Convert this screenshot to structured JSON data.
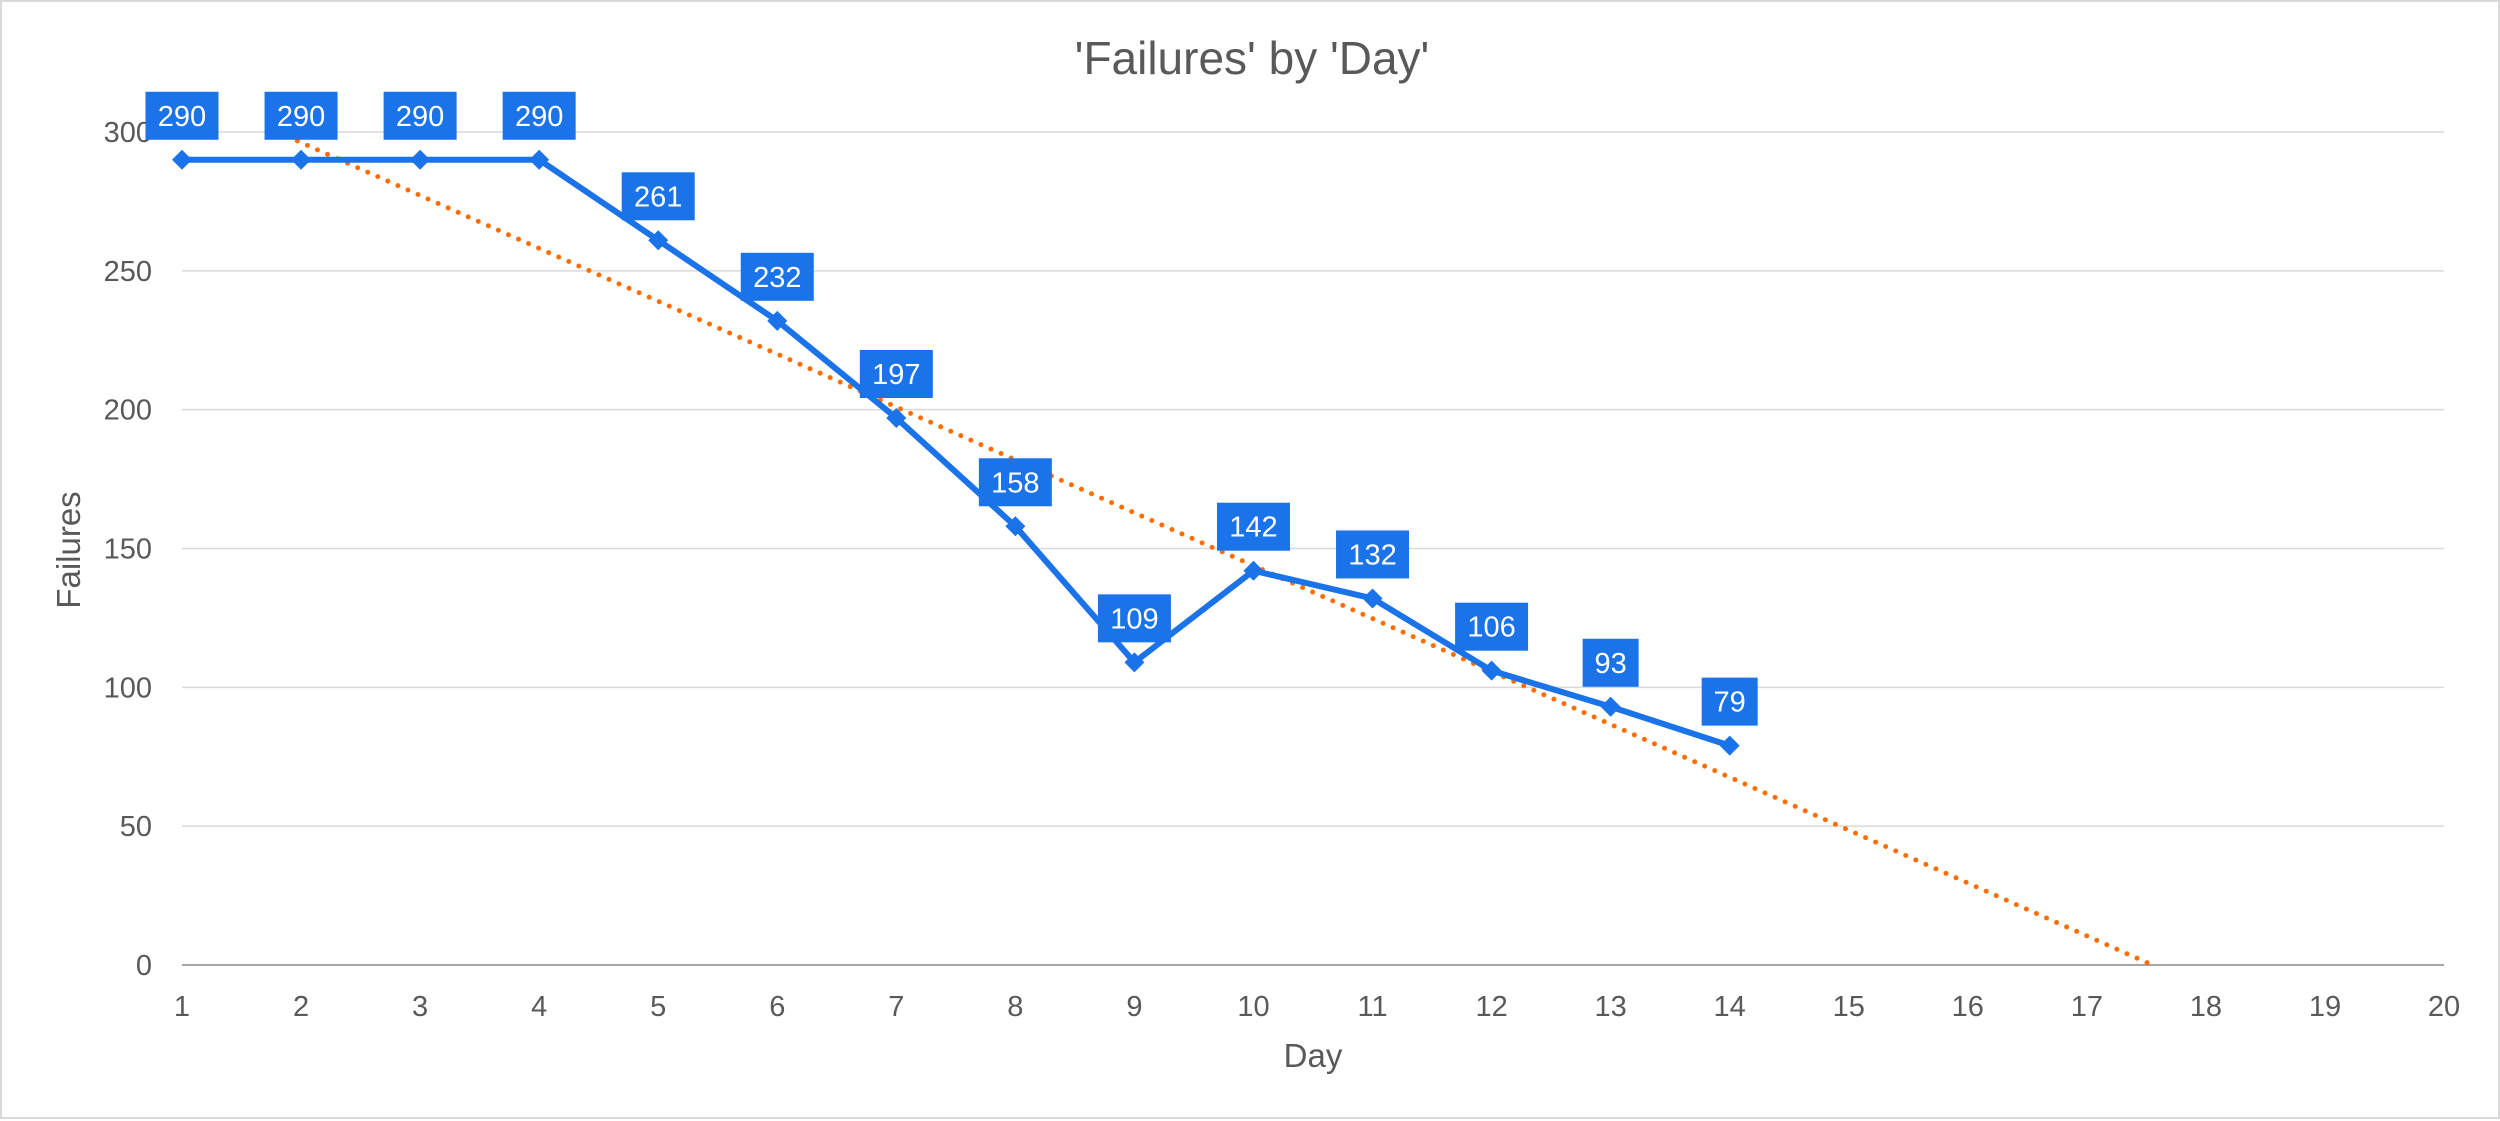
{
  "chart_data": {
    "type": "line",
    "title": "'Failures' by 'Day'",
    "xlabel": "Day",
    "ylabel": "Failures",
    "xlim": [
      1,
      20
    ],
    "ylim": [
      0,
      300
    ],
    "x_ticks": [
      1,
      2,
      3,
      4,
      5,
      6,
      7,
      8,
      9,
      10,
      11,
      12,
      13,
      14,
      15,
      16,
      17,
      18,
      19,
      20
    ],
    "y_ticks": [
      0,
      50,
      100,
      150,
      200,
      250,
      300
    ],
    "grid": "horizontal",
    "legend": "none",
    "series": [
      {
        "x": [
          1,
          2,
          3,
          4,
          5,
          6,
          7,
          8,
          9,
          10,
          11,
          12,
          13,
          14
        ],
        "values": [
          290,
          290,
          290,
          290,
          261,
          232,
          197,
          158,
          109,
          142,
          132,
          106,
          93,
          79
        ],
        "color": "#1a73e8",
        "marker": "diamond",
        "data_labels": true
      }
    ],
    "trendline": {
      "type": "linear",
      "style": "dotted",
      "color": "#ff6d01",
      "x": [
        1.8,
        17.55
      ],
      "values": [
        300,
        0
      ]
    }
  }
}
